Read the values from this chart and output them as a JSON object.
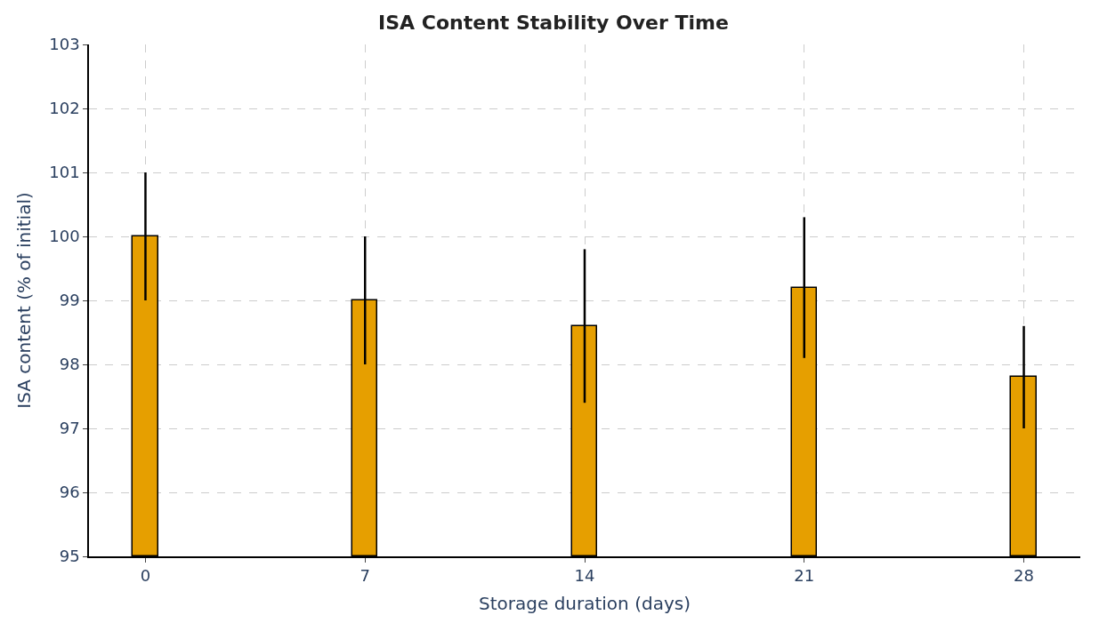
{
  "chart_data": {
    "type": "bar",
    "title": "ISA Content Stability Over Time",
    "xlabel": "Storage duration (days)",
    "ylabel": "ISA content (% of initial)",
    "x": [
      0,
      7,
      14,
      21,
      28
    ],
    "values": [
      100,
      99,
      98.6,
      99.2,
      97.8
    ],
    "errors": [
      1,
      1,
      1.2,
      1.1,
      0.8
    ],
    "color": "#e69f00",
    "xlim": [
      -1.8,
      29.8
    ],
    "xticks": [
      0,
      7,
      14,
      21,
      28
    ],
    "ylim": [
      95,
      103
    ],
    "yticks": [
      95,
      96,
      97,
      98,
      99,
      100,
      101,
      102,
      103
    ],
    "grid": true
  }
}
